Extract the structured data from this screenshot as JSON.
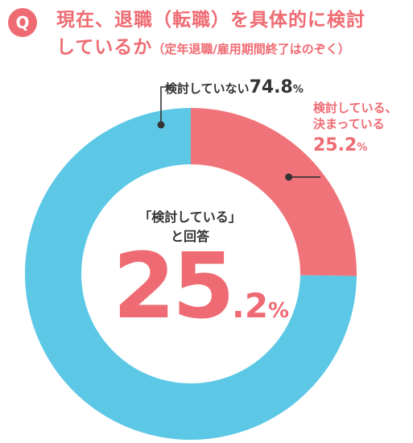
{
  "question_badge": "Q",
  "title": {
    "line1": "現在、退職（転職）を具体的に検討",
    "line2_main": "しているか",
    "line2_sub": "（定年退職/雇用期間終了はのぞく）"
  },
  "colors": {
    "accent": "#ef6b73",
    "not_considering": "#5cc8e6",
    "considering": "#ef7378",
    "text": "#333333"
  },
  "labels": {
    "not_considering": {
      "text": "検討していない",
      "value": "74.8",
      "unit": "%"
    },
    "considering": {
      "line1": "検討している、",
      "line2": "決まっている",
      "value": "25.2",
      "unit": "%"
    }
  },
  "center": {
    "caption_line1": "「検討している」",
    "caption_line2": "と回答",
    "value_int": "25",
    "value_dec": ".2",
    "unit": "%"
  },
  "chart_data": {
    "type": "pie",
    "style": "donut",
    "categories": [
      "検討している、決まっている",
      "検討していない"
    ],
    "values": [
      25.2,
      74.8
    ],
    "colors": [
      "#ef7378",
      "#5cc8e6"
    ],
    "unit": "%"
  }
}
